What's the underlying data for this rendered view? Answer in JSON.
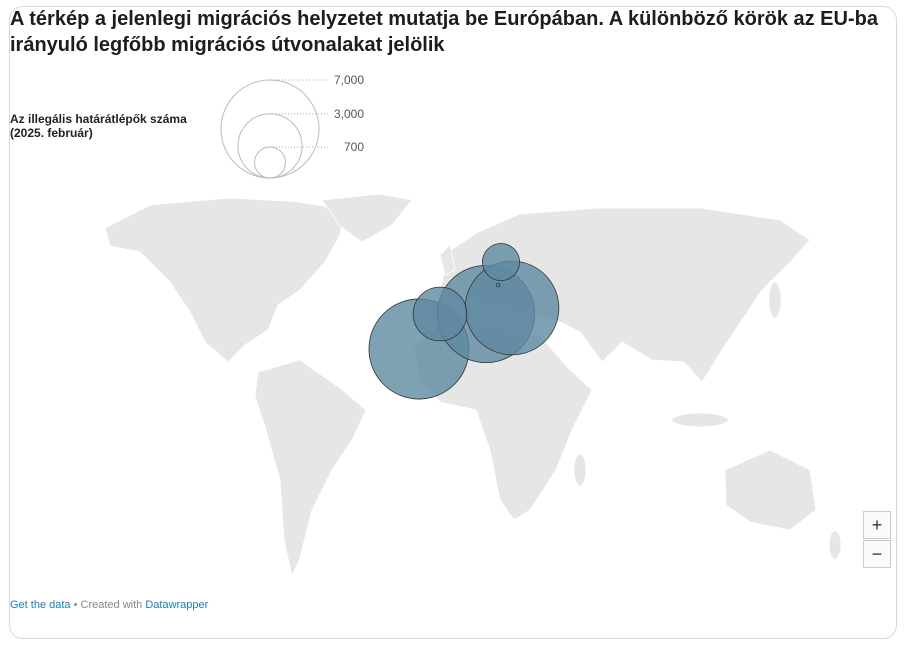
{
  "header": {
    "title": "A térkép a jelenlegi migrációs helyzetet mutatja be Európában. A különböző körök az EU-ba irányuló legfőbb migrációs útvonalakat jelölik"
  },
  "legend": {
    "title_lines": [
      "Az illegális határátlépők száma",
      "(2025. február)"
    ],
    "sizes": [
      {
        "value": 7000,
        "label": "7,000"
      },
      {
        "value": 3000,
        "label": "3,000"
      },
      {
        "value": 700,
        "label": "700"
      }
    ]
  },
  "map": {
    "bubbles": [
      7300,
      6900,
      6400,
      2100,
      1000,
      10
    ],
    "color": "#5f89a1"
  },
  "controls": {
    "zoom_in": "+",
    "zoom_out": "−"
  },
  "footer": {
    "get_data": "Get the data",
    "separator": "• Created with",
    "credit": "Datawrapper"
  }
}
